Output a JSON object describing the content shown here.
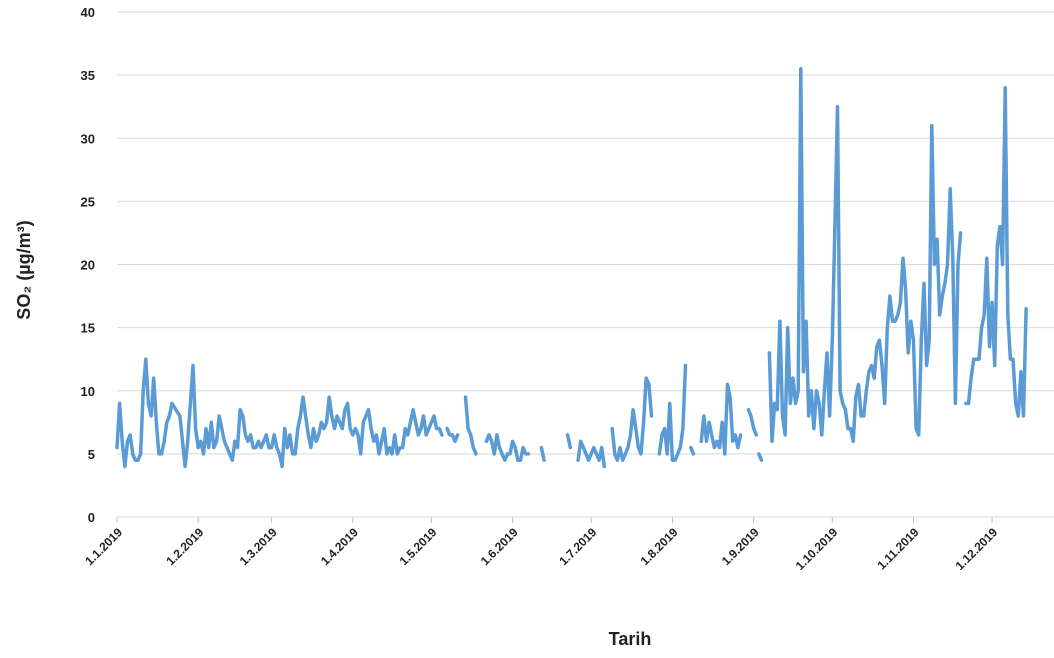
{
  "chart_data": {
    "type": "line",
    "title": "",
    "xlabel": "Tarih",
    "ylabel": "SO₂ (µg/m³)",
    "ylim": [
      0,
      40
    ],
    "yticks": [
      0,
      5,
      10,
      15,
      20,
      25,
      30,
      35,
      40
    ],
    "xticks": [
      "1.1.2019",
      "1.2.2019",
      "1.3.2019",
      "1.4.2019",
      "1.5.2019",
      "1.6.2019",
      "1.7.2019",
      "1.8.2019",
      "1.9.2019",
      "1.10.2019",
      "1.11.2019",
      "1.12.2019"
    ],
    "grid": true,
    "legend": "none",
    "series_color": "#5b9bd5",
    "series": [
      {
        "values": [
          [
            1,
            5.5
          ],
          [
            2,
            9
          ],
          [
            3,
            6
          ],
          [
            4,
            4
          ],
          [
            5,
            6
          ],
          [
            6,
            6.5
          ],
          [
            7,
            5
          ],
          [
            8,
            4.5
          ],
          [
            9,
            4.5
          ],
          [
            10,
            5
          ],
          [
            11,
            10
          ],
          [
            12,
            12.5
          ],
          [
            13,
            9
          ],
          [
            14,
            8
          ],
          [
            15,
            11
          ],
          [
            16,
            7.5
          ],
          [
            17,
            5
          ],
          [
            18,
            5
          ],
          [
            19,
            6
          ],
          [
            20,
            7.5
          ],
          [
            21,
            8
          ],
          [
            22,
            9
          ],
          [
            25,
            8
          ],
          [
            26,
            6
          ],
          [
            27,
            4
          ],
          [
            28,
            6
          ],
          [
            29,
            9
          ],
          [
            30,
            12
          ],
          [
            31,
            7
          ],
          [
            32,
            5.5
          ],
          [
            33,
            6
          ],
          [
            34,
            5
          ],
          [
            35,
            7
          ],
          [
            36,
            5.5
          ],
          [
            37,
            7.5
          ],
          [
            38,
            5.5
          ],
          [
            39,
            6
          ],
          [
            40,
            8
          ],
          [
            41,
            7
          ],
          [
            42,
            6
          ],
          [
            43,
            5.5
          ],
          [
            44,
            5
          ],
          [
            45,
            4.5
          ],
          [
            46,
            6
          ],
          [
            47,
            5.5
          ],
          [
            48,
            8.5
          ],
          [
            49,
            8
          ],
          [
            50,
            6.5
          ],
          [
            51,
            6
          ],
          [
            52,
            6.5
          ],
          [
            53,
            5.5
          ],
          [
            54,
            5.5
          ],
          [
            55,
            6
          ],
          [
            56,
            5.5
          ],
          [
            57,
            6
          ],
          [
            58,
            6.5
          ],
          [
            59,
            5.5
          ],
          [
            60,
            5.5
          ],
          [
            61,
            6.5
          ],
          [
            62,
            5.5
          ],
          [
            63,
            5
          ],
          [
            64,
            4
          ],
          [
            65,
            7
          ],
          [
            66,
            5.5
          ],
          [
            67,
            6.5
          ],
          [
            68,
            5
          ],
          [
            69,
            5
          ],
          [
            70,
            7
          ],
          [
            71,
            8
          ],
          [
            72,
            9.5
          ],
          [
            73,
            8
          ],
          [
            74,
            6.5
          ],
          [
            75,
            5.5
          ],
          [
            76,
            7
          ],
          [
            77,
            6
          ],
          [
            78,
            6.5
          ],
          [
            79,
            7.5
          ],
          [
            80,
            7
          ],
          [
            81,
            7.5
          ],
          [
            82,
            9.5
          ],
          [
            83,
            8
          ],
          [
            84,
            7
          ],
          [
            85,
            8
          ],
          [
            86,
            7.5
          ],
          [
            87,
            7
          ],
          [
            88,
            8.5
          ],
          [
            89,
            9
          ],
          [
            90,
            7
          ],
          [
            91,
            6.5
          ],
          [
            92,
            7
          ],
          [
            93,
            6.5
          ],
          [
            94,
            5
          ],
          [
            95,
            7.5
          ],
          [
            96,
            8
          ],
          [
            97,
            8.5
          ],
          [
            98,
            7
          ],
          [
            99,
            6
          ],
          [
            100,
            6.5
          ],
          [
            101,
            5
          ],
          [
            102,
            6
          ],
          [
            103,
            7
          ],
          [
            104,
            5
          ],
          [
            105,
            5.5
          ],
          [
            106,
            5
          ],
          [
            107,
            6.5
          ],
          [
            108,
            5
          ],
          [
            109,
            5.5
          ],
          [
            110,
            5.5
          ],
          [
            111,
            7
          ],
          [
            112,
            6.5
          ],
          [
            113,
            7.5
          ],
          [
            114,
            8.5
          ],
          [
            115,
            7.5
          ],
          [
            116,
            6.5
          ],
          [
            117,
            7
          ],
          [
            118,
            8
          ],
          [
            119,
            6.5
          ],
          [
            120,
            7
          ],
          [
            121,
            7.5
          ],
          [
            122,
            8
          ],
          [
            123,
            7
          ],
          [
            124,
            7
          ],
          [
            125,
            6.5
          ]
        ]
      },
      {
        "values": [
          [
            127,
            7
          ],
          [
            128,
            6.5
          ],
          [
            129,
            6.5
          ],
          [
            130,
            6
          ],
          [
            131,
            6.5
          ]
        ]
      },
      {
        "values": [
          [
            134,
            9.5
          ],
          [
            135,
            7
          ],
          [
            136,
            6.5
          ],
          [
            137,
            5.5
          ],
          [
            138,
            5
          ]
        ]
      },
      {
        "values": [
          [
            142,
            6
          ],
          [
            143,
            6.5
          ],
          [
            144,
            6
          ],
          [
            145,
            5
          ],
          [
            146,
            6.5
          ],
          [
            147,
            5.5
          ],
          [
            148,
            5
          ],
          [
            149,
            4.5
          ],
          [
            150,
            5
          ],
          [
            151,
            5
          ],
          [
            152,
            6
          ],
          [
            153,
            5.5
          ],
          [
            154,
            4.5
          ],
          [
            155,
            4.5
          ],
          [
            156,
            5.5
          ],
          [
            157,
            5
          ],
          [
            158,
            5
          ]
        ]
      },
      {
        "values": [
          [
            163,
            5.5
          ],
          [
            164,
            4.5
          ]
        ]
      },
      {
        "values": [
          [
            173,
            6.5
          ],
          [
            174,
            5.5
          ]
        ]
      },
      {
        "values": [
          [
            177,
            4.5
          ],
          [
            178,
            6
          ],
          [
            179,
            5.5
          ],
          [
            180,
            5
          ],
          [
            181,
            4.5
          ],
          [
            182,
            5
          ],
          [
            183,
            5.5
          ],
          [
            184,
            5
          ],
          [
            185,
            4.5
          ],
          [
            186,
            5.5
          ],
          [
            187,
            4
          ]
        ]
      },
      {
        "values": [
          [
            190,
            7
          ],
          [
            191,
            5
          ],
          [
            192,
            4.5
          ],
          [
            193,
            5.5
          ],
          [
            194,
            4.5
          ],
          [
            195,
            5
          ],
          [
            196,
            5.5
          ],
          [
            197,
            6.5
          ],
          [
            198,
            8.5
          ],
          [
            199,
            7
          ],
          [
            200,
            5.5
          ],
          [
            201,
            5
          ],
          [
            202,
            7.5
          ],
          [
            203,
            11
          ],
          [
            204,
            10.5
          ],
          [
            205,
            8
          ]
        ]
      },
      {
        "values": [
          [
            208,
            5
          ],
          [
            209,
            6.5
          ],
          [
            210,
            7
          ],
          [
            211,
            5
          ],
          [
            212,
            9
          ],
          [
            213,
            4.5
          ],
          [
            214,
            4.5
          ],
          [
            215,
            5
          ],
          [
            216,
            5.5
          ],
          [
            217,
            7
          ],
          [
            218,
            12
          ]
        ]
      },
      {
        "values": [
          [
            220,
            5.5
          ],
          [
            221,
            5
          ]
        ]
      },
      {
        "values": [
          [
            224,
            6
          ],
          [
            225,
            8
          ],
          [
            226,
            6
          ],
          [
            227,
            7.5
          ],
          [
            228,
            6.5
          ],
          [
            229,
            5.5
          ],
          [
            230,
            6
          ],
          [
            231,
            5.5
          ],
          [
            232,
            7.5
          ],
          [
            233,
            5
          ],
          [
            234,
            10.5
          ],
          [
            235,
            9.5
          ],
          [
            236,
            6
          ],
          [
            237,
            6.5
          ],
          [
            238,
            5.5
          ],
          [
            239,
            6.5
          ]
        ]
      },
      {
        "values": [
          [
            242,
            8.5
          ],
          [
            243,
            8
          ],
          [
            244,
            7
          ],
          [
            245,
            6.5
          ]
        ]
      },
      {
        "values": [
          [
            246,
            5
          ],
          [
            247,
            4.5
          ]
        ]
      },
      {
        "values": [
          [
            250,
            13
          ],
          [
            251,
            6
          ],
          [
            252,
            9
          ],
          [
            253,
            8.5
          ],
          [
            254,
            15.5
          ],
          [
            255,
            8
          ],
          [
            256,
            6.5
          ],
          [
            257,
            15
          ],
          [
            258,
            9
          ],
          [
            259,
            11
          ],
          [
            260,
            9
          ],
          [
            261,
            10
          ],
          [
            262,
            35.5
          ],
          [
            263,
            11.5
          ],
          [
            264,
            15.5
          ],
          [
            265,
            8
          ],
          [
            266,
            10
          ],
          [
            267,
            7
          ],
          [
            268,
            10
          ],
          [
            269,
            9
          ],
          [
            270,
            6.5
          ],
          [
            271,
            10
          ],
          [
            272,
            13
          ],
          [
            273,
            8
          ],
          [
            274,
            14
          ],
          [
            275,
            23
          ],
          [
            276,
            32.5
          ],
          [
            277,
            10
          ],
          [
            278,
            9
          ],
          [
            279,
            8.5
          ],
          [
            280,
            7
          ],
          [
            281,
            7
          ],
          [
            282,
            6
          ],
          [
            283,
            9.5
          ],
          [
            284,
            10.5
          ],
          [
            285,
            8
          ],
          [
            286,
            8
          ],
          [
            287,
            10
          ],
          [
            288,
            11.5
          ],
          [
            289,
            12
          ],
          [
            290,
            11
          ],
          [
            291,
            13.5
          ],
          [
            292,
            14
          ],
          [
            293,
            12
          ],
          [
            294,
            9
          ],
          [
            295,
            15
          ],
          [
            296,
            17.5
          ],
          [
            297,
            15.5
          ],
          [
            298,
            15.5
          ],
          [
            299,
            16
          ],
          [
            300,
            17
          ],
          [
            301,
            20.5
          ],
          [
            302,
            18
          ],
          [
            303,
            13
          ],
          [
            304,
            15.5
          ],
          [
            305,
            14
          ],
          [
            306,
            7
          ],
          [
            307,
            6.5
          ],
          [
            308,
            14
          ],
          [
            309,
            18.5
          ],
          [
            310,
            12
          ],
          [
            311,
            14
          ],
          [
            312,
            31
          ],
          [
            313,
            20
          ],
          [
            314,
            22
          ],
          [
            315,
            16
          ],
          [
            316,
            17.5
          ],
          [
            317,
            18.5
          ],
          [
            318,
            20
          ],
          [
            319,
            26
          ],
          [
            320,
            20.5
          ],
          [
            321,
            9
          ],
          [
            322,
            20
          ],
          [
            323,
            22.5
          ]
        ]
      },
      {
        "values": [
          [
            325,
            9
          ],
          [
            326,
            9
          ],
          [
            327,
            11
          ],
          [
            328,
            12.5
          ],
          [
            329,
            12.5
          ],
          [
            330,
            12.5
          ],
          [
            331,
            15
          ],
          [
            332,
            16
          ],
          [
            333,
            20.5
          ],
          [
            334,
            13.5
          ],
          [
            335,
            17
          ],
          [
            336,
            12
          ],
          [
            337,
            21.5
          ],
          [
            338,
            23
          ],
          [
            339,
            20
          ],
          [
            340,
            34
          ],
          [
            341,
            16
          ],
          [
            342,
            12.5
          ],
          [
            343,
            12.5
          ],
          [
            344,
            9
          ],
          [
            345,
            8
          ],
          [
            346,
            11.5
          ],
          [
            347,
            8
          ],
          [
            348,
            16.5
          ]
        ]
      }
    ]
  }
}
